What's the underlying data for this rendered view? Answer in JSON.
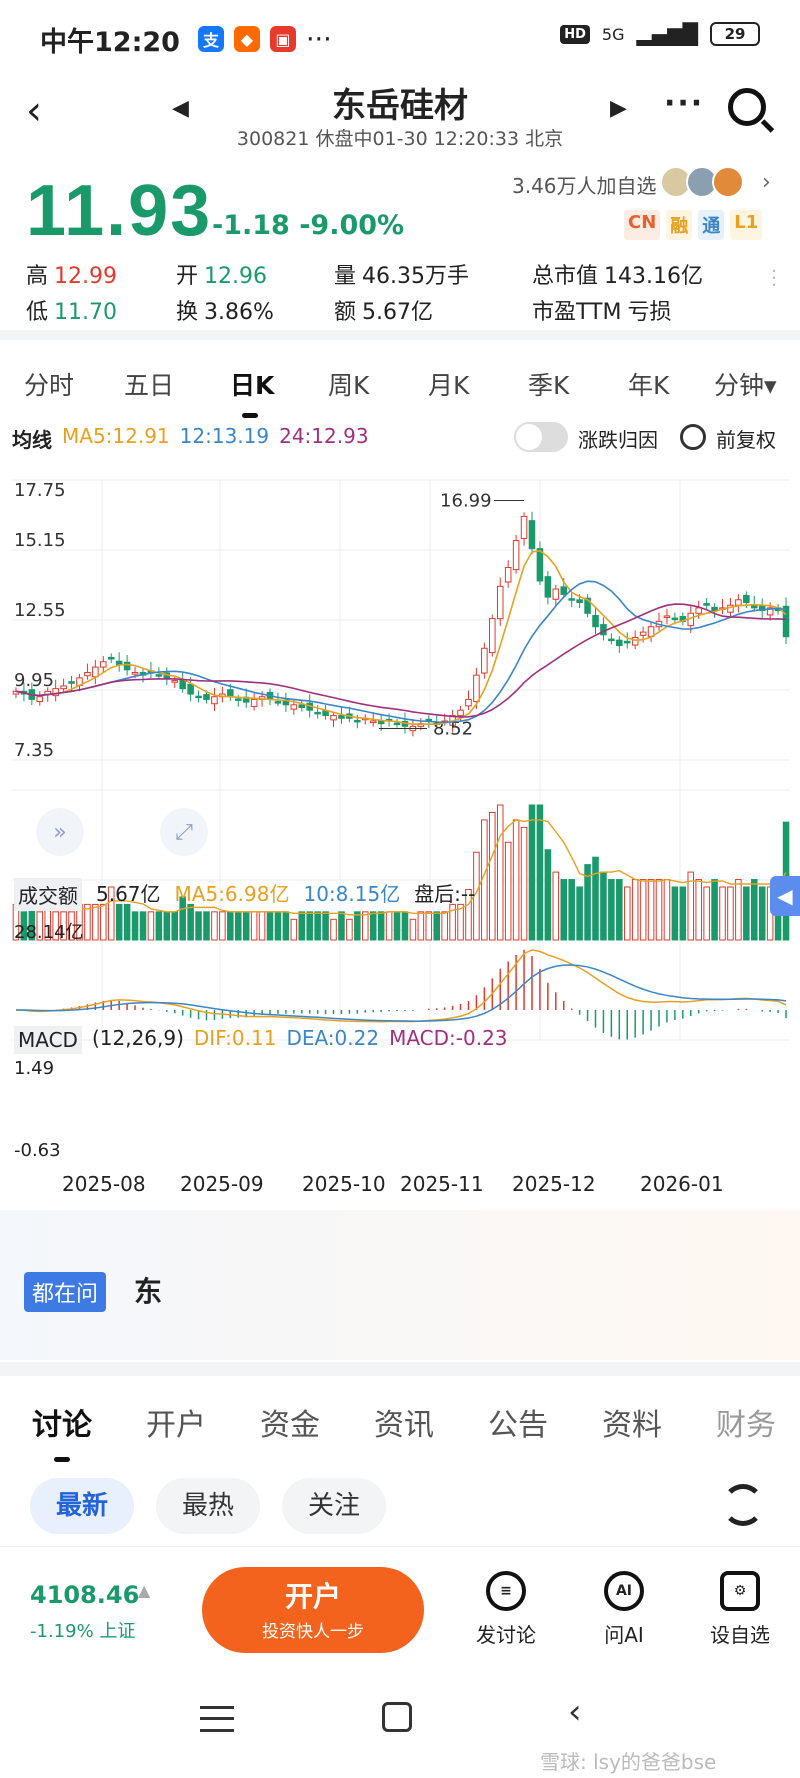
{
  "status_bar": {
    "time": "中午12:20",
    "network": "5G",
    "battery": "29",
    "more": "···"
  },
  "header": {
    "name": "东岳硅材",
    "sub": "300821 休盘中01-30 12:20:33 北京"
  },
  "quote": {
    "price": "11.93",
    "change": "-1.18 -9.00%",
    "followers": "3.46万人加自选",
    "tags": [
      "CN",
      "融",
      "通",
      "L1"
    ],
    "high_label": "高",
    "high": "12.99",
    "low_label": "低",
    "low": "11.70",
    "open_label": "开",
    "open": "12.96",
    "turnover_label": "换",
    "turnover": "3.86%",
    "volume_label": "量",
    "volume": "46.35万手",
    "amount_label": "额",
    "amount": "5.67亿",
    "mcap_label": "总市值",
    "mcap": "143.16亿",
    "pe_label": "市盈TTM",
    "pe": "亏损"
  },
  "period_tabs": [
    "分时",
    "五日",
    "日K",
    "周K",
    "月K",
    "季K",
    "年K",
    "分钟▾"
  ],
  "ma_legend": {
    "label": "均线",
    "ma5": "MA5:12.91",
    "ma13": "12:13.19",
    "ma24": "24:12.93"
  },
  "toggle_label": "涨跌归因",
  "adjust_label": "前复权",
  "volume_legend": {
    "label": "成交额",
    "value": "5.67亿",
    "ma5": "MA5:6.98亿",
    "ma10": "10:8.15亿",
    "after": "盘后:--",
    "max": "28.14亿"
  },
  "macd_legend": {
    "label": "MACD",
    "params": "(12,26,9)",
    "dif": "DIF:0.11",
    "dea": "DEA:0.22",
    "macd": "MACD:-0.23",
    "hi": "1.49",
    "lo": "-0.63"
  },
  "x_labels": [
    "2025-08",
    "2025-09",
    "2025-10",
    "2025-11",
    "2025-12",
    "2026-01"
  ],
  "chart_data": {
    "type": "candlestick",
    "y_ticks": [
      "17.75",
      "15.15",
      "12.55",
      "9.95",
      "7.35"
    ],
    "ylim": [
      7.35,
      17.75
    ],
    "high_mark": "16.99",
    "low_mark": "8.52",
    "closes": [
      9.9,
      9.8,
      9.6,
      9.7,
      9.9,
      10.0,
      10.1,
      10.2,
      10.4,
      10.6,
      10.8,
      11.0,
      11.1,
      10.9,
      10.7,
      10.6,
      10.5,
      10.6,
      10.5,
      10.4,
      10.3,
      10.0,
      9.8,
      9.7,
      9.6,
      9.7,
      9.8,
      9.7,
      9.6,
      9.5,
      9.6,
      9.7,
      9.6,
      9.5,
      9.4,
      9.4,
      9.3,
      9.2,
      9.1,
      9.0,
      9.0,
      8.9,
      8.9,
      8.8,
      8.9,
      8.8,
      8.7,
      8.8,
      8.7,
      8.6,
      8.6,
      8.7,
      8.8,
      8.7,
      8.8,
      9.0,
      9.2,
      9.6,
      10.5,
      11.5,
      12.6,
      13.8,
      14.5,
      15.5,
      16.4,
      15.2,
      14.0,
      13.4,
      13.7,
      13.5,
      13.3,
      13.2,
      12.8,
      12.3,
      12.0,
      11.8,
      11.6,
      11.7,
      11.9,
      12.1,
      12.3,
      12.5,
      12.7,
      12.6,
      12.5,
      12.8,
      13.0,
      13.1,
      12.9,
      13.0,
      13.1,
      13.3,
      13.2,
      13.0,
      12.9,
      13.0,
      12.9,
      11.93
    ],
    "volume_max_label": "28.14亿"
  },
  "ask": {
    "tag": "都在问",
    "text": "东"
  },
  "bottom_tabs": [
    "讨论",
    "开户",
    "资金",
    "资讯",
    "公告",
    "资料",
    "财务"
  ],
  "filter_pills": [
    "最新",
    "最热",
    "关注"
  ],
  "index": {
    "value": "4108.46",
    "sub": "-1.19% 上证"
  },
  "open_account": {
    "title": "开户",
    "sub": "投资快人一步"
  },
  "actions": [
    {
      "label": "发讨论",
      "icon": "comment-icon"
    },
    {
      "label": "问AI",
      "icon": "ai-icon"
    },
    {
      "label": "设自选",
      "icon": "add-watchlist-icon"
    }
  ],
  "watermark": "雪球: lsy的爸爸bse",
  "colors": {
    "down": "#1a9a6a",
    "up": "#e0392d",
    "ma5": "#e8a020",
    "ma13": "#3a86c8",
    "ma24": "#a0307f",
    "accent": "#f4631e"
  }
}
